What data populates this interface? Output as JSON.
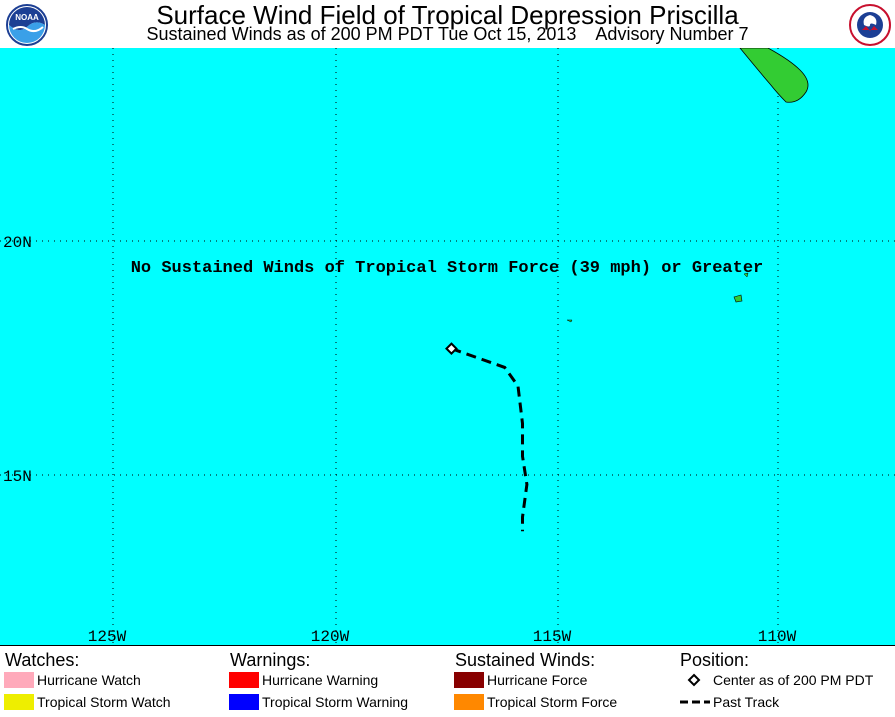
{
  "header": {
    "title": "Surface Wind Field of Tropical Depression Priscilla",
    "subtitle": "Sustained Winds as of 200 PM PDT Tue Oct 15, 2013    Advisory Number 7",
    "left_logo_icon": "noaa-logo-icon",
    "right_logo_icon": "national-weather-service-logo-icon",
    "right_logo_text": "NATIONAL WEATHER SERVICE"
  },
  "map": {
    "notice": "No Sustained Winds of Tropical Storm Force (39 mph) or Greater",
    "ocean_color": "#00ffff",
    "land_color": "#33cc33",
    "lat_labels": [
      "20N",
      "15N"
    ],
    "lon_labels": [
      "125W",
      "120W",
      "115W",
      "110W"
    ],
    "center_position": {
      "lat": 17.7,
      "lon": -117.4
    },
    "past_track": [
      {
        "lat": 17.7,
        "lon": -117.4
      },
      {
        "lat": 17.5,
        "lon": -116.8
      },
      {
        "lat": 17.3,
        "lon": -116.2
      },
      {
        "lat": 16.9,
        "lon": -115.9
      },
      {
        "lat": 16.1,
        "lon": -115.8
      },
      {
        "lat": 15.4,
        "lon": -115.8
      },
      {
        "lat": 14.8,
        "lon": -115.7
      },
      {
        "lat": 14.1,
        "lon": -115.8
      },
      {
        "lat": 13.8,
        "lon": -115.8
      }
    ]
  },
  "legend": {
    "watches": {
      "heading": "Watches:",
      "items": [
        {
          "label": "Hurricane Watch",
          "color": "#ffaabb"
        },
        {
          "label": "Tropical Storm Watch",
          "color": "#eeee00"
        }
      ]
    },
    "warnings": {
      "heading": "Warnings:",
      "items": [
        {
          "label": "Hurricane Warning",
          "color": "#ff0000"
        },
        {
          "label": "Tropical Storm Warning",
          "color": "#0000ff"
        }
      ]
    },
    "winds": {
      "heading": "Sustained Winds:",
      "items": [
        {
          "label": "Hurricane Force",
          "color": "#880000"
        },
        {
          "label": "Tropical Storm Force",
          "color": "#ff8800"
        }
      ]
    },
    "position": {
      "heading": "Position:",
      "center_label": "Center as of 200 PM PDT",
      "track_label": "Past Track"
    }
  }
}
